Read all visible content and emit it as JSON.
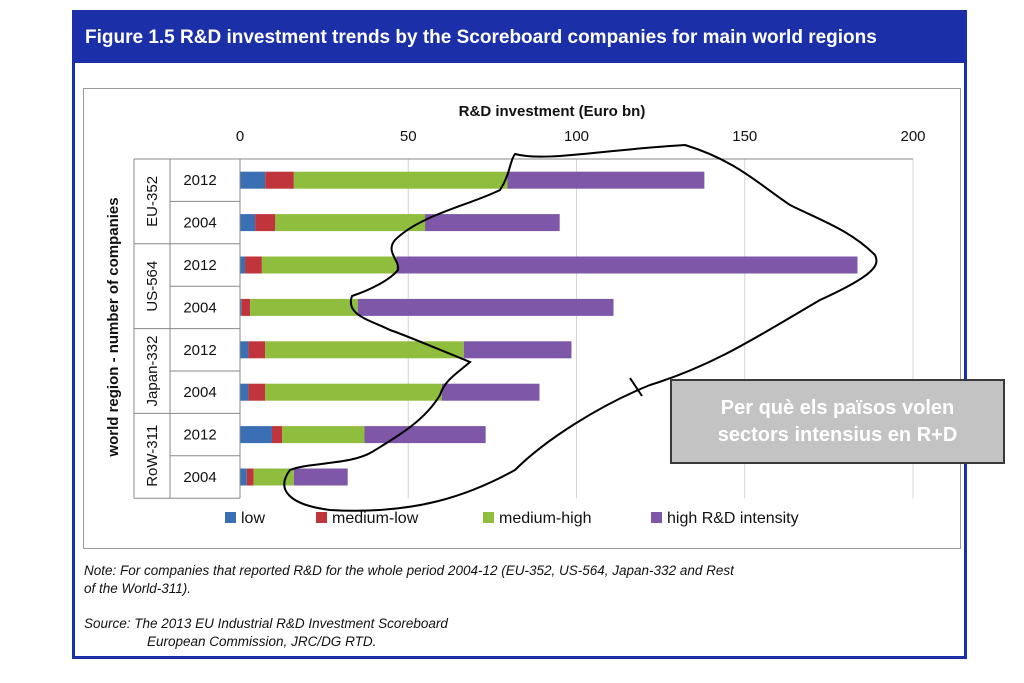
{
  "figure_title": "Figure 1.5  R&D investment trends by the Scoreboard companies for main world regions",
  "colors": {
    "frame": "#1a2fa8",
    "low": "#3a6fb4",
    "medium_low": "#c0343b",
    "medium_high": "#8fbd3e",
    "high": "#7e57a8"
  },
  "chart_data": {
    "type": "bar",
    "orientation": "horizontal",
    "stacked": true,
    "title": "R&D investment (Euro bn)",
    "xlabel": "R&D investment (Euro bn)",
    "ylabel": "world region - number of companies",
    "xlim": [
      0,
      200
    ],
    "xticks": [
      "0",
      "50",
      "100",
      "150",
      "200"
    ],
    "groups": [
      {
        "name": "EU-352",
        "years": [
          "2012",
          "2004"
        ]
      },
      {
        "name": "US-564",
        "years": [
          "2012",
          "2004"
        ]
      },
      {
        "name": "Japan-332",
        "years": [
          "2012",
          "2004"
        ]
      },
      {
        "name": "RoW-311",
        "years": [
          "2012",
          "2004"
        ]
      }
    ],
    "categories": [
      "EU-352 2012",
      "EU-352 2004",
      "US-564 2012",
      "US-564 2004",
      "Japan-332 2012",
      "Japan-332 2004",
      "RoW-311 2012",
      "RoW-311 2004"
    ],
    "series": [
      {
        "name": "low",
        "values": [
          7.5,
          4.5,
          1.5,
          0.5,
          2.5,
          2.5,
          9.5,
          2
        ]
      },
      {
        "name": "medium-low",
        "values": [
          8.5,
          6,
          5,
          2.5,
          5,
          5,
          3,
          2
        ]
      },
      {
        "name": "medium-high",
        "values": [
          63.5,
          44.5,
          40,
          32,
          59,
          52.5,
          24.5,
          12
        ]
      },
      {
        "name": "high R&D intensity",
        "values": [
          58.5,
          40,
          137,
          76,
          32,
          29,
          36,
          16
        ]
      }
    ]
  },
  "annotation": {
    "line1": "Per què els països volen",
    "line2": "sectors intensius en R+D"
  },
  "note": {
    "line1": "Note: For companies that reported R&D for the whole period 2004-12 (EU-352, US-564, Japan-332 and Rest",
    "line2": "of the World-311).",
    "source1": "Source: The 2013 EU Industrial R&D Investment Scoreboard",
    "source2": "European Commission, JRC/DG RTD."
  }
}
